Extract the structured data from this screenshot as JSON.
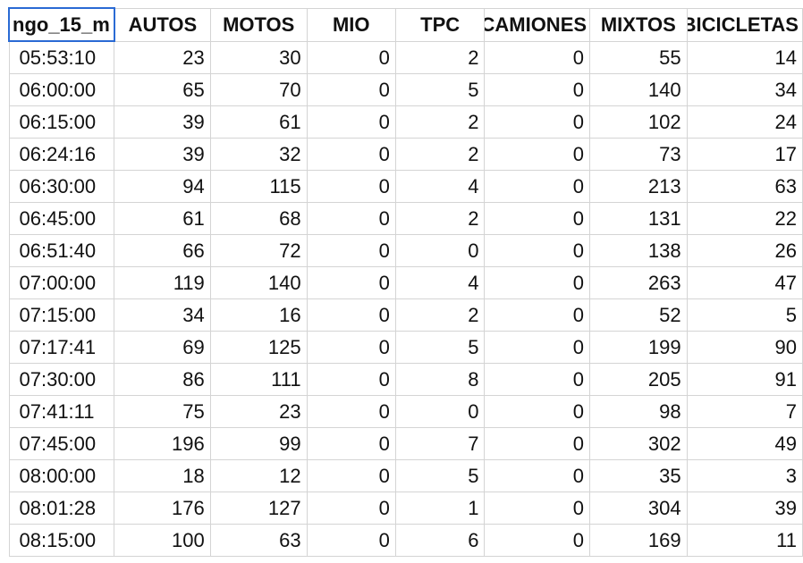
{
  "sheet": {
    "headers": [
      "ngo_15_m",
      "AUTOS",
      "MOTOS",
      "MIO",
      "TPC",
      "CAMIONES",
      "MIXTOS",
      "BICICLETAS"
    ],
    "rows": [
      [
        "05:53:10",
        "23",
        "30",
        "0",
        "2",
        "0",
        "55",
        "14"
      ],
      [
        "06:00:00",
        "65",
        "70",
        "0",
        "5",
        "0",
        "140",
        "34"
      ],
      [
        "06:15:00",
        "39",
        "61",
        "0",
        "2",
        "0",
        "102",
        "24"
      ],
      [
        "06:24:16",
        "39",
        "32",
        "0",
        "2",
        "0",
        "73",
        "17"
      ],
      [
        "06:30:00",
        "94",
        "115",
        "0",
        "4",
        "0",
        "213",
        "63"
      ],
      [
        "06:45:00",
        "61",
        "68",
        "0",
        "2",
        "0",
        "131",
        "22"
      ],
      [
        "06:51:40",
        "66",
        "72",
        "0",
        "0",
        "0",
        "138",
        "26"
      ],
      [
        "07:00:00",
        "119",
        "140",
        "0",
        "4",
        "0",
        "263",
        "47"
      ],
      [
        "07:15:00",
        "34",
        "16",
        "0",
        "2",
        "0",
        "52",
        "5"
      ],
      [
        "07:17:41",
        "69",
        "125",
        "0",
        "5",
        "0",
        "199",
        "90"
      ],
      [
        "07:30:00",
        "86",
        "111",
        "0",
        "8",
        "0",
        "205",
        "91"
      ],
      [
        "07:41:11",
        "75",
        "23",
        "0",
        "0",
        "0",
        "98",
        "7"
      ],
      [
        "07:45:00",
        "196",
        "99",
        "0",
        "7",
        "0",
        "302",
        "49"
      ],
      [
        "08:00:00",
        "18",
        "12",
        "0",
        "5",
        "0",
        "35",
        "3"
      ],
      [
        "08:01:28",
        "176",
        "127",
        "0",
        "1",
        "0",
        "304",
        "39"
      ],
      [
        "08:15:00",
        "100",
        "63",
        "0",
        "6",
        "0",
        "169",
        "11"
      ]
    ]
  },
  "colors": {
    "selection_border": "#2a6ad4",
    "gridline": "#d4d4d4",
    "text": "#111111"
  }
}
